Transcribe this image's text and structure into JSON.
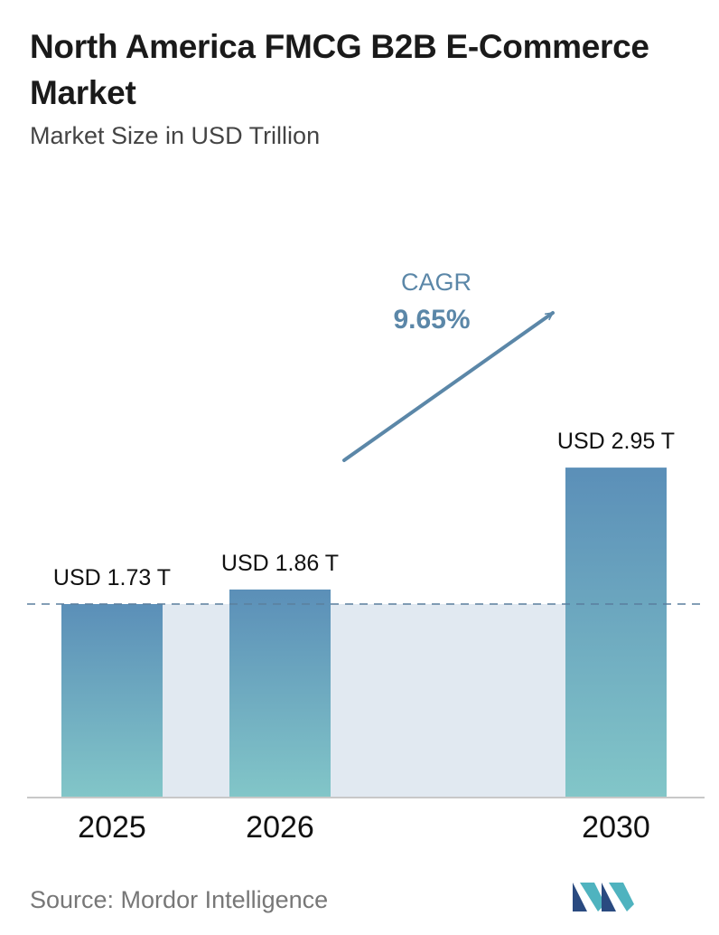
{
  "header": {
    "title": "North America FMCG B2B E-Commerce Market",
    "subtitle": "Market Size in USD Trillion"
  },
  "chart_data": {
    "type": "bar",
    "categories": [
      "2025",
      "2026",
      "2030"
    ],
    "values": [
      1.73,
      1.86,
      2.95
    ],
    "value_labels": [
      "USD 1.73 T",
      "USD 1.86 T",
      "USD 2.95 T"
    ],
    "unit": "USD Trillion",
    "ylim": [
      0,
      3.25
    ],
    "grid": false,
    "legend": "none",
    "reference_line": {
      "value": 1.73,
      "style": "dashed"
    },
    "annotation": {
      "label": "CAGR",
      "value": "9.65%"
    },
    "colors": {
      "bar_top": "#5b8fb8",
      "bar_bottom": "#82c6c8",
      "band": "#e1e9f1",
      "arrow": "#5b87a8",
      "reference_line": "#5b7f9e"
    }
  },
  "footer": {
    "source": "Source: Mordor Intelligence",
    "logo_icon": "mordor-intelligence-logo-icon",
    "logo_colors": [
      "#2a4a80",
      "#4fb3bf"
    ]
  }
}
